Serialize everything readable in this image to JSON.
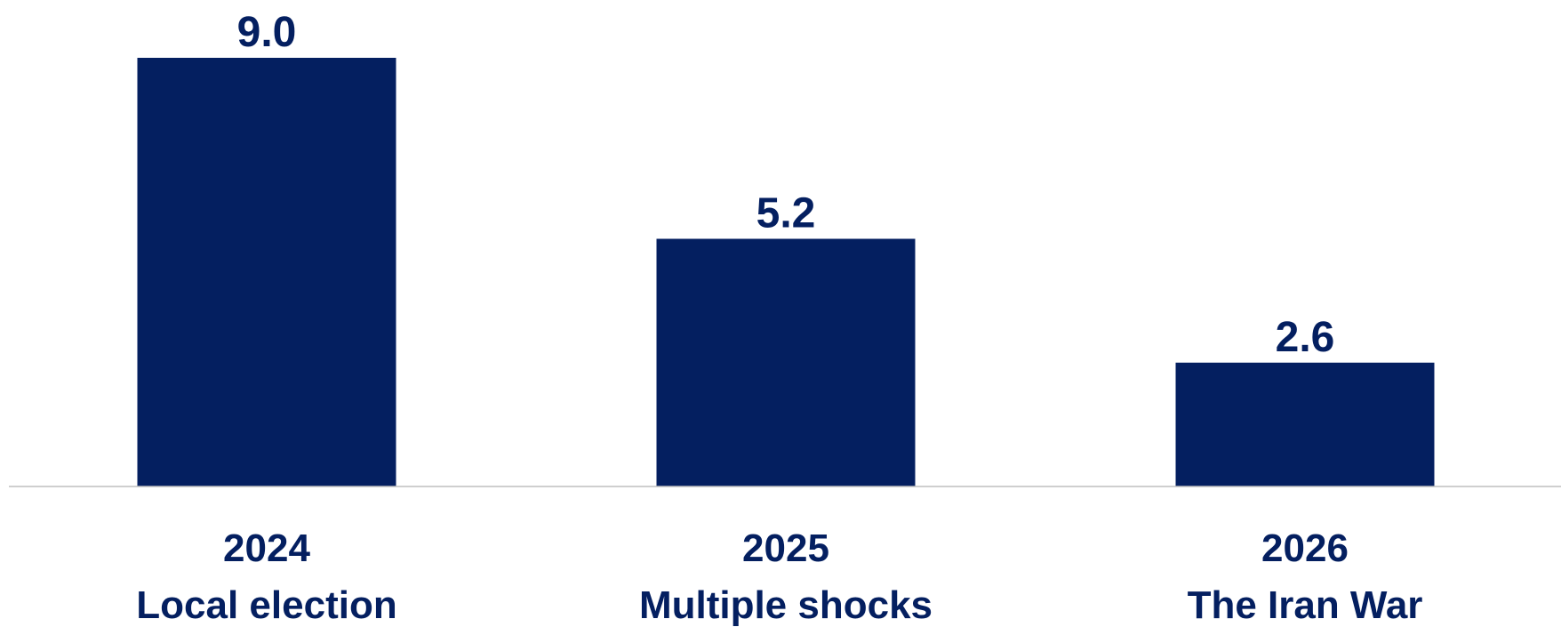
{
  "chart_data": {
    "type": "bar",
    "categories": [
      "2024",
      "2025",
      "2026"
    ],
    "category_sublabels": [
      "Local election",
      "Multiple shocks",
      "The Iran War"
    ],
    "values": [
      9.0,
      5.2,
      2.6
    ],
    "value_labels": [
      "9.0",
      "5.2",
      "2.6"
    ],
    "title": "",
    "xlabel": "",
    "ylabel": "",
    "ylim": [
      0,
      9.0
    ],
    "grid": false,
    "legend": "none",
    "bar_color": "#041F60",
    "text_color": "#041F60",
    "axis_color": "#BFBFBF"
  }
}
